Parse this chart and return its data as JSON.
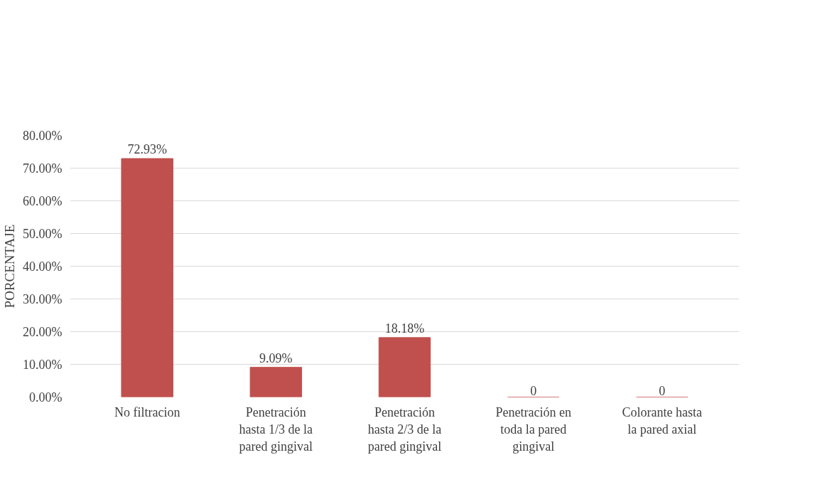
{
  "chart_data": {
    "type": "bar",
    "ylabel": "PORCENTAJE",
    "categories": [
      "No filtracion",
      "Penetración hasta 1/3 de la pared gingival",
      "Penetración hasta 2/3 de la pared gingival",
      "Penetración en toda la pared gingival",
      "Colorante hasta la pared axial"
    ],
    "values": [
      72.93,
      9.09,
      18.18,
      0,
      0
    ],
    "value_labels": [
      "72.93%",
      "9.09%",
      "18.18%",
      "0",
      "0"
    ],
    "color": "#c0504d",
    "ylim": [
      0,
      80
    ],
    "yticks": [
      {
        "value": 0,
        "label": "0.00%"
      },
      {
        "value": 10,
        "label": "10.00%"
      },
      {
        "value": 20,
        "label": "20.00%"
      },
      {
        "value": 30,
        "label": "30.00%"
      },
      {
        "value": 40,
        "label": "40.00%"
      },
      {
        "value": 50,
        "label": "50.00%"
      },
      {
        "value": 60,
        "label": "60.00%"
      },
      {
        "value": 70,
        "label": "70.00%"
      },
      {
        "value": 80,
        "label": "80.00%"
      }
    ],
    "grid": "y"
  }
}
